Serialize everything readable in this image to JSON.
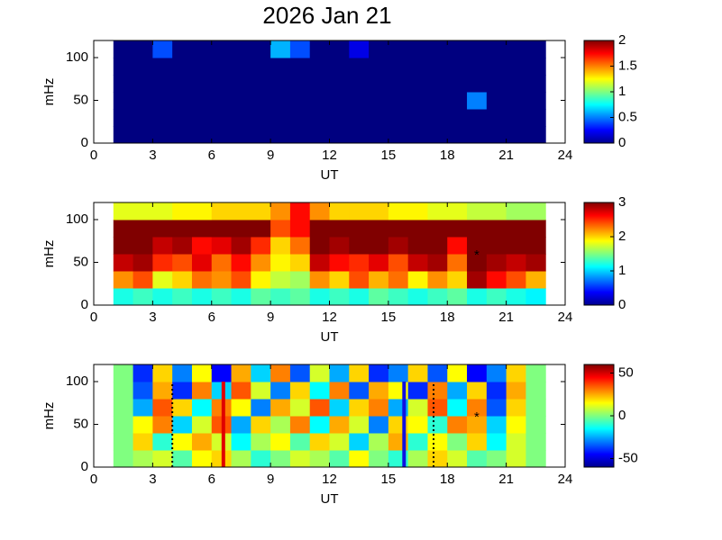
{
  "chart_data": [
    {
      "type": "heatmap",
      "title": "2026 Jan 21",
      "xlabel": "UT",
      "ylabel": "mHz",
      "xlim": [
        0,
        24
      ],
      "xticks": [
        0,
        3,
        6,
        9,
        12,
        15,
        18,
        21,
        24
      ],
      "ylim": [
        0,
        120
      ],
      "yticks": [
        0,
        50,
        100
      ],
      "colormap": "jet",
      "clim": [
        0,
        2
      ],
      "cticks": [
        0,
        0.5,
        1,
        1.5,
        2
      ],
      "xbins": [
        1,
        2,
        3,
        4,
        5,
        6,
        7,
        8,
        9,
        10,
        11,
        12,
        13,
        14,
        15,
        16,
        17,
        18,
        19,
        20,
        21,
        22,
        23
      ],
      "ybins": [
        0,
        20,
        40,
        60,
        80,
        100,
        120
      ],
      "values": [
        [
          0,
          0,
          0,
          0,
          0,
          0,
          0,
          0,
          0,
          0,
          0,
          0,
          0,
          0,
          0,
          0,
          0,
          0,
          0,
          0,
          0,
          0
        ],
        [
          0,
          0,
          0,
          0,
          0,
          0,
          0,
          0,
          0,
          0,
          0,
          0,
          0,
          0,
          0,
          0,
          0,
          0,
          0,
          0,
          0,
          0
        ],
        [
          0,
          0,
          0,
          0,
          0,
          0,
          0,
          0,
          0,
          0,
          0,
          0,
          0,
          0,
          0,
          0,
          0,
          0,
          0.5,
          0,
          0,
          0
        ],
        [
          0,
          0,
          0,
          0,
          0,
          0,
          0,
          0,
          0,
          0,
          0,
          0,
          0,
          0,
          0,
          0,
          0,
          0,
          0,
          0,
          0,
          0
        ],
        [
          0,
          0,
          0,
          0,
          0,
          0,
          0,
          0,
          0,
          0,
          0,
          0,
          0,
          0,
          0,
          0,
          0,
          0,
          0,
          0,
          0,
          0
        ],
        [
          0,
          0,
          0.4,
          0,
          0,
          0,
          0,
          0,
          0.6,
          0.4,
          0,
          0,
          0.2,
          0,
          0,
          0,
          0,
          0,
          0,
          0,
          0,
          0
        ]
      ]
    },
    {
      "type": "heatmap",
      "xlabel": "UT",
      "ylabel": "mHz",
      "xlim": [
        0,
        24
      ],
      "xticks": [
        0,
        3,
        6,
        9,
        12,
        15,
        18,
        21,
        24
      ],
      "ylim": [
        0,
        120
      ],
      "yticks": [
        0,
        50,
        100
      ],
      "colormap": "jet",
      "clim": [
        0,
        3
      ],
      "cticks": [
        0,
        1,
        2,
        3
      ],
      "xbins": [
        1,
        2,
        3,
        4,
        5,
        6,
        7,
        8,
        9,
        10,
        11,
        12,
        13,
        14,
        15,
        16,
        17,
        18,
        19,
        20,
        21,
        22,
        23
      ],
      "ybins": [
        0,
        20,
        40,
        60,
        80,
        100,
        120
      ],
      "values": [
        [
          1.2,
          1.3,
          1.2,
          1.3,
          1.2,
          1.3,
          1.2,
          1.4,
          1.3,
          1.4,
          1.2,
          1.3,
          1.2,
          1.4,
          1.3,
          1.2,
          1.3,
          1.4,
          1.2,
          1.3,
          1.2,
          1.1
        ],
        [
          2.2,
          2.4,
          1.8,
          2.0,
          2.3,
          2.2,
          2.4,
          1.9,
          1.7,
          1.6,
          2.2,
          2.0,
          2.4,
          2.1,
          2.3,
          1.9,
          2.2,
          2.0,
          2.9,
          2.6,
          2.4,
          2.1
        ],
        [
          2.8,
          2.9,
          2.5,
          2.4,
          2.7,
          2.3,
          2.6,
          2.2,
          1.9,
          2.0,
          2.8,
          2.6,
          2.5,
          2.7,
          2.4,
          2.8,
          2.9,
          2.3,
          3,
          2.9,
          2.8,
          2.9
        ],
        [
          3,
          3,
          2.8,
          2.9,
          2.6,
          2.7,
          2.9,
          2.5,
          2.0,
          2.3,
          3,
          2.9,
          3,
          3,
          2.9,
          3,
          3,
          2.6,
          3,
          3,
          3,
          3
        ],
        [
          3,
          3,
          3,
          3,
          3,
          3,
          3,
          3,
          2.4,
          2.6,
          3,
          3,
          3,
          3,
          3,
          3,
          3,
          3,
          3,
          3,
          3,
          3
        ],
        [
          1.8,
          1.8,
          1.8,
          1.9,
          1.9,
          2,
          2,
          2,
          2.2,
          2.6,
          2.2,
          2,
          2,
          2,
          1.9,
          1.9,
          1.8,
          1.8,
          1.7,
          1.7,
          1.6,
          1.6
        ]
      ],
      "markers": [
        {
          "x": 19.5,
          "y": 58
        }
      ]
    },
    {
      "type": "heatmap",
      "xlabel": "UT",
      "ylabel": "mHz",
      "xlim": [
        0,
        24
      ],
      "xticks": [
        0,
        3,
        6,
        9,
        12,
        15,
        18,
        21,
        24
      ],
      "ylim": [
        0,
        120
      ],
      "yticks": [
        0,
        50,
        100
      ],
      "colormap": "jet",
      "clim": [
        -60,
        60
      ],
      "cticks": [
        -50,
        0,
        50
      ],
      "xbins": [
        1,
        2,
        3,
        4,
        5,
        6,
        7,
        8,
        9,
        10,
        11,
        12,
        13,
        14,
        15,
        16,
        17,
        18,
        19,
        20,
        21,
        22,
        23
      ],
      "ybins": [
        0,
        20,
        40,
        60,
        80,
        100,
        120
      ],
      "values": [
        [
          0,
          5,
          10,
          -5,
          15,
          20,
          5,
          -10,
          0,
          10,
          5,
          -5,
          15,
          0,
          -10,
          5,
          20,
          10,
          -5,
          0,
          10,
          0
        ],
        [
          0,
          20,
          -10,
          15,
          25,
          10,
          -15,
          5,
          15,
          -5,
          20,
          10,
          -20,
          5,
          25,
          -10,
          15,
          0,
          20,
          -15,
          10,
          0
        ],
        [
          0,
          15,
          30,
          -20,
          10,
          35,
          -25,
          20,
          5,
          30,
          -15,
          25,
          10,
          -30,
          20,
          15,
          -10,
          30,
          25,
          -20,
          15,
          0
        ],
        [
          0,
          -25,
          35,
          20,
          -15,
          30,
          15,
          -30,
          25,
          10,
          35,
          -20,
          20,
          30,
          -25,
          10,
          35,
          -15,
          30,
          -35,
          20,
          0
        ],
        [
          0,
          -35,
          25,
          -40,
          30,
          -20,
          35,
          10,
          -30,
          20,
          -15,
          30,
          -35,
          25,
          15,
          -40,
          30,
          -25,
          20,
          -40,
          25,
          0
        ],
        [
          0,
          -40,
          20,
          -30,
          15,
          -45,
          25,
          -20,
          30,
          -35,
          10,
          -25,
          20,
          -40,
          -30,
          20,
          -35,
          15,
          -45,
          -30,
          20,
          0
        ]
      ],
      "vlines": [
        {
          "x": 4,
          "top": 100,
          "color": "#000000",
          "style": "dotted"
        },
        {
          "x": 6.6,
          "top": 100,
          "color": "#e00000",
          "style": "solid"
        },
        {
          "x": 15.8,
          "top": 100,
          "color": "#1010e0",
          "style": "solid"
        },
        {
          "x": 17.3,
          "top": 100,
          "color": "#000000",
          "style": "dotted"
        }
      ],
      "markers": [
        {
          "x": 19.5,
          "y": 58
        }
      ]
    }
  ]
}
